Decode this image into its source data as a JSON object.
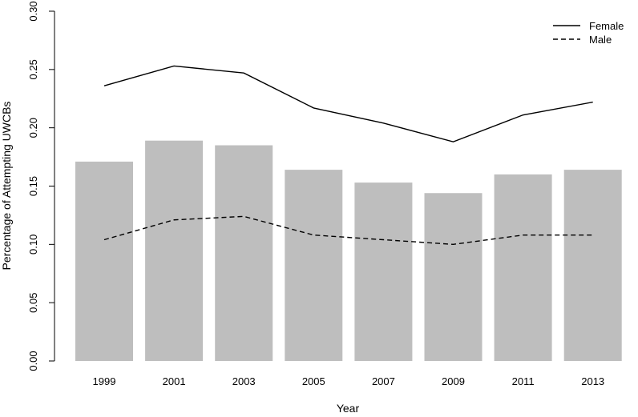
{
  "chart_data": {
    "type": "bar",
    "categories": [
      "1999",
      "2001",
      "2003",
      "2005",
      "2007",
      "2009",
      "2011",
      "2013"
    ],
    "values": [
      0.171,
      0.189,
      0.185,
      0.164,
      0.153,
      0.144,
      0.16,
      0.164
    ],
    "lines": [
      {
        "name": "Female",
        "style": "solid",
        "values": [
          0.236,
          0.253,
          0.247,
          0.217,
          0.204,
          0.188,
          0.211,
          0.222
        ]
      },
      {
        "name": "Male",
        "style": "dashed",
        "values": [
          0.104,
          0.121,
          0.124,
          0.108,
          0.104,
          0.1,
          0.108,
          0.108
        ]
      }
    ],
    "xlabel": "Year",
    "ylabel": "Percentage of Attempting UWCBs",
    "ylim": [
      0,
      0.3
    ],
    "yticks": [
      "0.00",
      "0.05",
      "0.10",
      "0.15",
      "0.20",
      "0.25",
      "0.30"
    ],
    "bar_color": "#bebebe",
    "line_color": "#000000",
    "grid": false,
    "legend_position": "top-right"
  }
}
